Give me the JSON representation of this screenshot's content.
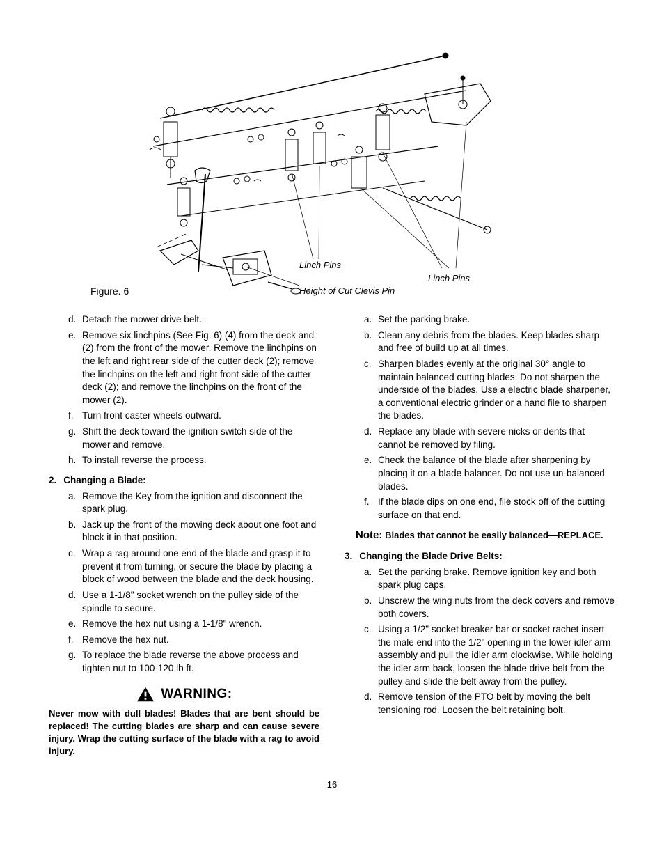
{
  "figure": {
    "label": "Figure. 6",
    "callout_linch_pins_left": "Linch Pins",
    "callout_linch_pins_right": "Linch Pins",
    "callout_clevis": "Height of Cut Clevis Pin",
    "stroke": "#000000",
    "thin": 0.8,
    "medium": 1.2
  },
  "left_column": {
    "continuation_items": [
      {
        "letter": "d.",
        "text": "Detach the mower drive belt."
      },
      {
        "letter": "e.",
        "text": "Remove six linchpins (See Fig. 6) (4) from the deck and (2) from the front of the mower. Remove the linchpins on the left and right rear side of the cutter deck (2); remove the linchpins on the left and right front side of the cutter deck (2); and remove the linchpins on the front of the mower (2)."
      },
      {
        "letter": "f.",
        "text": "Turn front caster wheels outward."
      },
      {
        "letter": "g.",
        "text": "Shift the deck toward the ignition switch side of the mower and remove."
      },
      {
        "letter": "h.",
        "text": "To install reverse the process."
      }
    ],
    "section2_number": "2.",
    "section2_title": "Changing a Blade:",
    "section2_items": [
      {
        "letter": "a.",
        "text": "Remove the Key from the ignition and disconnect the spark plug."
      },
      {
        "letter": "b.",
        "text": "Jack up the front of the mowing deck about one foot and block it in that position."
      },
      {
        "letter": "c.",
        "text": "Wrap a rag around one end of the blade and grasp it to prevent it from turning, or secure the blade by placing a block of wood between the blade and the deck housing."
      },
      {
        "letter": "d.",
        "text": "Use a 1-1/8\" socket wrench on the pulley side of the spindle to secure."
      },
      {
        "letter": "e.",
        "text": "Remove the hex nut using a 1-1/8\" wrench."
      },
      {
        "letter": "f.",
        "text": "Remove the hex nut."
      },
      {
        "letter": "g.",
        "text": "To replace the blade reverse the above process and tighten nut to 100-120 lb ft."
      }
    ],
    "warning_label": "WARNING:",
    "warning_text": "Never mow with dull blades! Blades that are bent should be replaced! The cutting blades are sharp and can cause severe injury. Wrap the cutting surface of the blade with a rag to avoid injury."
  },
  "right_column": {
    "continuation_items": [
      {
        "letter": "a.",
        "text": "Set the parking brake."
      },
      {
        "letter": "b.",
        "text": "Clean any debris from the blades. Keep blades sharp and free of build up at all times."
      },
      {
        "letter": "c.",
        "text": "Sharpen blades evenly at the original 30° angle to maintain balanced cutting blades. Do not sharpen the underside of the blades. Use a electric blade sharpener, a conventional electric grinder or a hand file to sharpen the blades."
      },
      {
        "letter": "d.",
        "text": "Replace any blade with severe nicks or dents that cannot be removed by filing."
      },
      {
        "letter": "e.",
        "text": "Check the balance of the blade after sharpening by placing it on a blade balancer. Do not use un-balanced blades."
      },
      {
        "letter": "f.",
        "text": "If the blade dips on one end, file stock off of the cutting surface on that end."
      }
    ],
    "note_label": "Note:",
    "note_text": "Blades that cannot be easily balanced—REPLACE.",
    "section3_number": "3.",
    "section3_title": "Changing the Blade Drive Belts:",
    "section3_items": [
      {
        "letter": "a.",
        "text": "Set the parking brake. Remove ignition key and both spark plug caps."
      },
      {
        "letter": "b.",
        "text": "Unscrew the wing nuts from the deck covers and remove both covers."
      },
      {
        "letter": "c.",
        "text": "Using a 1/2\" socket breaker bar or socket rachet insert the male end into the 1/2\" opening in the lower idler arm assembly and pull the idler arm clockwise. While holding the idler arm back, loosen the blade drive belt from the pulley and slide the belt away from the pulley."
      },
      {
        "letter": "d.",
        "text": "Remove tension of the PTO belt by moving the belt tensioning rod. Loosen the belt retaining bolt."
      }
    ]
  },
  "page_number": "16"
}
